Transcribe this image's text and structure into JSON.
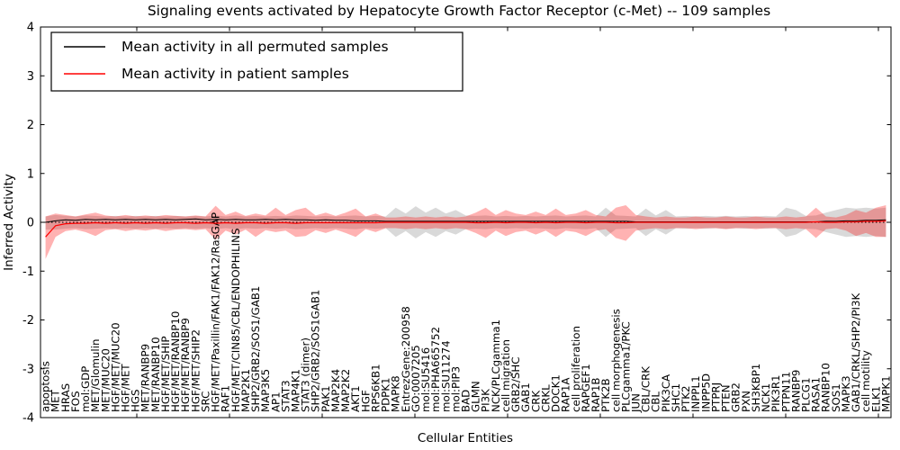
{
  "chart_data": {
    "type": "line",
    "title": "Signaling events activated by Hepatocyte Growth Factor Receptor (c-Met) -- 109 samples",
    "xlabel": "Cellular Entities",
    "ylabel": "Inferred Activity",
    "ylim": [
      -4,
      4
    ],
    "yticks": [
      4,
      3,
      2,
      1,
      0,
      -1,
      -2,
      -3,
      -4
    ],
    "grid": false,
    "legend_position": "upper-left",
    "zero_line_style": "dotted",
    "categories": [
      "apoptosis",
      "MET",
      "HRAS",
      "FOS",
      "mol:GDP",
      "MET/Glomulin",
      "MET/MUC20",
      "HGF/MET/MUC20",
      "HGF/MET",
      "HGS",
      "MET/RANBP9",
      "MET/RANBP10",
      "HGF/MET/SHIP",
      "HGF/MET/RANBP10",
      "HGF/MET/RANBP9",
      "HGF/MET/SHIP2",
      "SRC",
      "HGF/MET/Paxillin/FAK1/FAK12/RasGAP",
      "RAF1",
      "HGF/MET/CIN85/CBL/ENDOPHILINS",
      "MAP2K1",
      "SHP2/GRB2/SOS1/GAB1",
      "MAP3K5",
      "AP1",
      "STAT3",
      "MAP4K1",
      "STAT3 (dimer)",
      "SHP2/GRB2/SOS1GAB1",
      "PAK1",
      "MAP2K4",
      "MAP2K2",
      "AKT1",
      "HGF",
      "RPS6KB1",
      "PDPK1",
      "MAPK8",
      "EntrezGene:200958",
      "GO:0007205",
      "mol:SU5416",
      "mol:PHA665752",
      "mol:SU11274",
      "mol:PIP3",
      "BAD",
      "GLMN",
      "PI3K",
      "NCK/PLCgamma1",
      "cell migration",
      "GRB2/SHC",
      "GAB1",
      "CRK",
      "CRKL",
      "DOCK1",
      "RAP1A",
      "cell proliferation",
      "RAPGEF1",
      "RAP1B",
      "PTK2B",
      "cell morphogenesis",
      "PLCgamma1/PKC",
      "JUN",
      "CBL/CRK",
      "CBL",
      "PIK3CA",
      "SHC1",
      "PTK2",
      "INPPL1",
      "INPP5D",
      "PTPRJ",
      "PTEN",
      "GRB2",
      "PXN",
      "SH3KBP1",
      "NCK1",
      "PIK3R1",
      "PTPN11",
      "RANBP9",
      "PLCG1",
      "RASA1",
      "RANBP10",
      "SOS1",
      "MAPK3",
      "GAB1/CRKL/SHP2/PI3K",
      "cell motility",
      "ELK1",
      "MAPK1"
    ],
    "series": [
      {
        "name": "Mean activity in all permuted samples",
        "type": "line",
        "color": "#000000",
        "values": [
          0.0,
          0.03,
          0.05,
          0.04,
          0.06,
          0.05,
          0.06,
          0.05,
          0.06,
          0.05,
          0.06,
          0.05,
          0.06,
          0.05,
          0.06,
          0.07,
          0.05,
          0.06,
          0.05,
          0.06,
          0.05,
          0.05,
          0.06,
          0.05,
          0.06,
          0.05,
          0.05,
          0.04,
          0.05,
          0.04,
          0.04,
          0.03,
          0.03,
          0.03,
          0.02,
          0.02,
          0.02,
          0.02,
          0.02,
          0.02,
          0.02,
          0.02,
          0.02,
          0.02,
          0.02,
          0.02,
          0.02,
          0.02,
          0.02,
          0.02,
          0.02,
          0.02,
          0.02,
          0.02,
          0.02,
          0.02,
          0.02,
          0.02,
          0.02,
          0.01,
          0.01,
          0.01,
          0.01,
          0.01,
          0.01,
          0.01,
          0.01,
          0.01,
          0.01,
          0.01,
          0.01,
          0.01,
          0.01,
          0.01,
          0.01,
          0.01,
          0.01,
          0.01,
          0.02,
          0.02,
          0.03,
          0.03,
          0.04,
          0.04,
          0.05
        ]
      },
      {
        "name": "Mean activity in patient samples",
        "type": "line",
        "color": "#ff0000",
        "values": [
          -0.3,
          -0.07,
          -0.03,
          -0.02,
          -0.02,
          -0.01,
          -0.02,
          -0.01,
          -0.02,
          -0.01,
          -0.02,
          -0.01,
          -0.02,
          -0.01,
          -0.01,
          -0.02,
          -0.01,
          -0.02,
          -0.01,
          -0.02,
          -0.01,
          -0.01,
          -0.02,
          -0.01,
          -0.01,
          -0.02,
          -0.01,
          -0.01,
          -0.01,
          -0.01,
          -0.01,
          -0.01,
          -0.01,
          -0.01,
          0.0,
          0.0,
          0.0,
          0.0,
          0.0,
          0.0,
          0.0,
          0.0,
          0.0,
          -0.01,
          -0.01,
          0.0,
          -0.01,
          0.0,
          0.0,
          -0.01,
          0.0,
          -0.01,
          0.0,
          0.0,
          -0.01,
          0.0,
          0.0,
          -0.01,
          -0.01,
          0.0,
          0.0,
          0.0,
          0.0,
          0.0,
          0.0,
          0.0,
          0.0,
          0.0,
          0.0,
          0.0,
          0.0,
          0.0,
          0.0,
          0.0,
          0.0,
          0.0,
          0.0,
          0.01,
          0.0,
          0.0,
          0.01,
          0.01,
          0.02,
          0.02,
          0.03
        ]
      },
      {
        "name": "Permuted samples activity range",
        "type": "band",
        "color": "#888888",
        "opacity": 0.32,
        "high": [
          0.12,
          0.15,
          0.13,
          0.12,
          0.14,
          0.13,
          0.12,
          0.13,
          0.12,
          0.13,
          0.12,
          0.13,
          0.12,
          0.13,
          0.12,
          0.13,
          0.12,
          0.14,
          0.12,
          0.14,
          0.12,
          0.13,
          0.12,
          0.13,
          0.12,
          0.14,
          0.13,
          0.12,
          0.13,
          0.12,
          0.13,
          0.14,
          0.12,
          0.13,
          0.12,
          0.3,
          0.18,
          0.33,
          0.2,
          0.3,
          0.18,
          0.25,
          0.14,
          0.13,
          0.14,
          0.12,
          0.13,
          0.12,
          0.13,
          0.12,
          0.13,
          0.14,
          0.12,
          0.13,
          0.14,
          0.12,
          0.3,
          0.14,
          0.13,
          0.12,
          0.28,
          0.14,
          0.25,
          0.12,
          0.13,
          0.12,
          0.13,
          0.12,
          0.13,
          0.12,
          0.13,
          0.12,
          0.13,
          0.12,
          0.3,
          0.25,
          0.13,
          0.14,
          0.2,
          0.25,
          0.3,
          0.28,
          0.3,
          0.28,
          0.3
        ],
        "low": [
          -0.15,
          -0.15,
          -0.13,
          -0.12,
          -0.14,
          -0.13,
          -0.12,
          -0.13,
          -0.12,
          -0.13,
          -0.12,
          -0.13,
          -0.12,
          -0.13,
          -0.12,
          -0.13,
          -0.12,
          -0.14,
          -0.12,
          -0.14,
          -0.12,
          -0.13,
          -0.12,
          -0.13,
          -0.12,
          -0.14,
          -0.13,
          -0.12,
          -0.13,
          -0.12,
          -0.13,
          -0.14,
          -0.12,
          -0.13,
          -0.12,
          -0.3,
          -0.18,
          -0.33,
          -0.2,
          -0.3,
          -0.18,
          -0.25,
          -0.14,
          -0.13,
          -0.14,
          -0.12,
          -0.13,
          -0.12,
          -0.13,
          -0.12,
          -0.13,
          -0.14,
          -0.12,
          -0.13,
          -0.14,
          -0.12,
          -0.3,
          -0.14,
          -0.13,
          -0.12,
          -0.28,
          -0.14,
          -0.25,
          -0.12,
          -0.13,
          -0.12,
          -0.13,
          -0.12,
          -0.13,
          -0.12,
          -0.13,
          -0.12,
          -0.13,
          -0.12,
          -0.3,
          -0.25,
          -0.13,
          -0.14,
          -0.2,
          -0.25,
          -0.3,
          -0.28,
          -0.3,
          -0.28,
          -0.3
        ]
      },
      {
        "name": "Patient samples activity range",
        "type": "band",
        "color": "#ff0000",
        "opacity": 0.3,
        "high": [
          0.12,
          0.18,
          0.15,
          0.12,
          0.16,
          0.2,
          0.14,
          0.12,
          0.15,
          0.12,
          0.14,
          0.12,
          0.15,
          0.13,
          0.12,
          0.14,
          0.12,
          0.34,
          0.15,
          0.22,
          0.13,
          0.18,
          0.14,
          0.3,
          0.15,
          0.25,
          0.3,
          0.14,
          0.2,
          0.13,
          0.2,
          0.28,
          0.12,
          0.18,
          0.1,
          0.1,
          0.12,
          0.1,
          0.12,
          0.1,
          0.12,
          0.1,
          0.12,
          0.2,
          0.3,
          0.15,
          0.25,
          0.18,
          0.15,
          0.22,
          0.15,
          0.28,
          0.15,
          0.18,
          0.25,
          0.15,
          0.12,
          0.3,
          0.35,
          0.15,
          0.12,
          0.1,
          0.12,
          0.1,
          0.1,
          0.12,
          0.1,
          0.1,
          0.12,
          0.1,
          0.1,
          0.12,
          0.1,
          0.1,
          0.12,
          0.1,
          0.12,
          0.3,
          0.12,
          0.1,
          0.15,
          0.25,
          0.2,
          0.3,
          0.35
        ],
        "low": [
          -0.75,
          -0.3,
          -0.18,
          -0.15,
          -0.2,
          -0.28,
          -0.16,
          -0.14,
          -0.18,
          -0.15,
          -0.17,
          -0.14,
          -0.18,
          -0.15,
          -0.14,
          -0.16,
          -0.14,
          -0.36,
          -0.17,
          -0.25,
          -0.15,
          -0.3,
          -0.16,
          -0.2,
          -0.17,
          -0.3,
          -0.28,
          -0.16,
          -0.22,
          -0.15,
          -0.22,
          -0.3,
          -0.14,
          -0.2,
          -0.12,
          -0.12,
          -0.14,
          -0.12,
          -0.14,
          -0.12,
          -0.14,
          -0.12,
          -0.14,
          -0.22,
          -0.32,
          -0.17,
          -0.28,
          -0.2,
          -0.17,
          -0.25,
          -0.17,
          -0.3,
          -0.17,
          -0.2,
          -0.28,
          -0.17,
          -0.14,
          -0.32,
          -0.38,
          -0.17,
          -0.14,
          -0.12,
          -0.14,
          -0.12,
          -0.12,
          -0.14,
          -0.12,
          -0.12,
          -0.14,
          -0.12,
          -0.12,
          -0.14,
          -0.12,
          -0.12,
          -0.14,
          -0.12,
          -0.14,
          -0.32,
          -0.14,
          -0.12,
          -0.17,
          -0.28,
          -0.22,
          -0.3,
          -0.3
        ]
      }
    ]
  }
}
